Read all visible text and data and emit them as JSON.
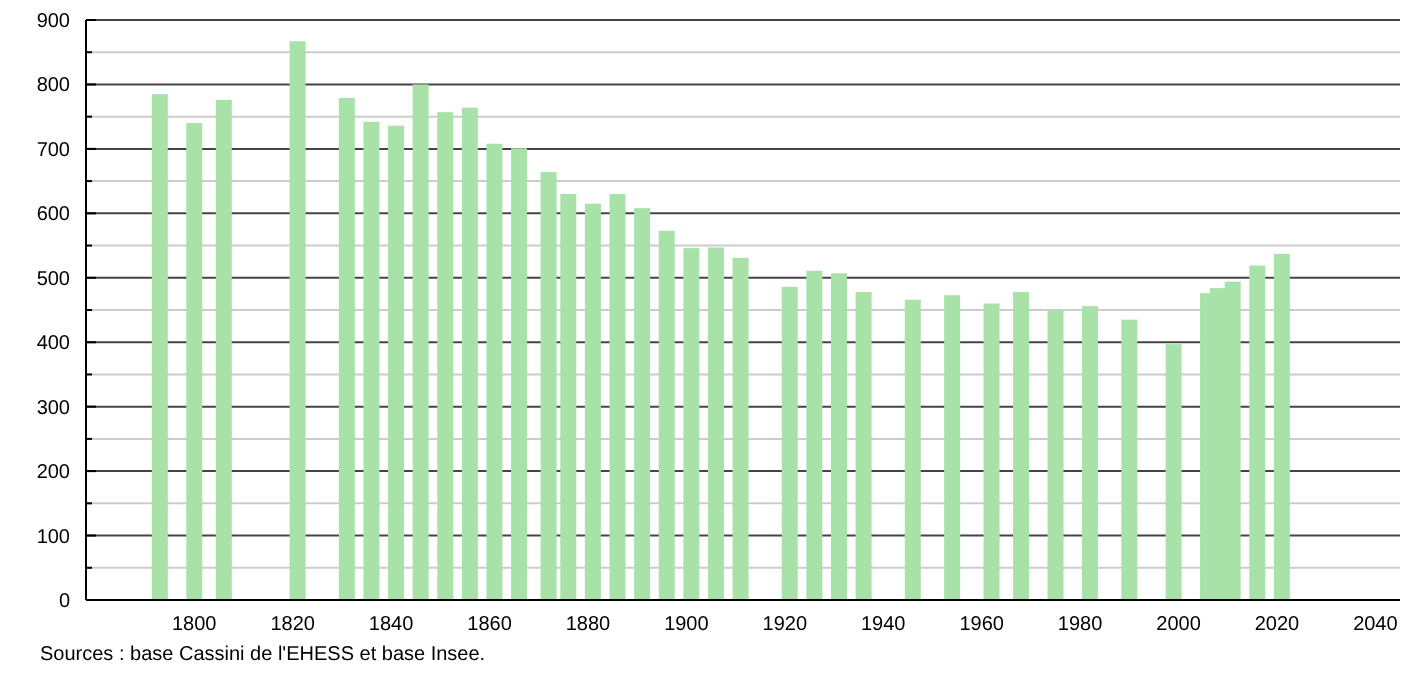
{
  "chart_data": {
    "type": "bar",
    "x": [
      1793,
      1800,
      1806,
      1821,
      1831,
      1836,
      1841,
      1846,
      1851,
      1856,
      1861,
      1866,
      1872,
      1876,
      1881,
      1886,
      1891,
      1896,
      1901,
      1906,
      1911,
      1921,
      1926,
      1931,
      1936,
      1946,
      1954,
      1962,
      1968,
      1975,
      1982,
      1990,
      1999,
      2006,
      2008,
      2011,
      2016,
      2021
    ],
    "values": [
      785,
      740,
      776,
      867,
      779,
      742,
      736,
      800,
      757,
      764,
      708,
      701,
      664,
      630,
      615,
      630,
      608,
      573,
      546,
      547,
      531,
      486,
      511,
      507,
      478,
      466,
      473,
      460,
      478,
      450,
      456,
      435,
      397,
      476,
      484,
      494,
      519,
      537
    ],
    "color": "#a8e2a8",
    "xlim": [
      1778,
      2045
    ],
    "xticks": [
      1800,
      1820,
      1840,
      1860,
      1880,
      1900,
      1920,
      1940,
      1960,
      1980,
      2000,
      2020,
      2040
    ],
    "ylim": [
      0,
      900
    ],
    "yticks": [
      0,
      {
        "value": 50,
        "label": null
      },
      100,
      {
        "value": 150,
        "label": null
      },
      200,
      {
        "value": 250,
        "label": null
      },
      300,
      {
        "value": 350,
        "label": null
      },
      400,
      {
        "value": 450,
        "label": null
      },
      500,
      {
        "value": 550,
        "label": null
      },
      600,
      {
        "value": 650,
        "label": null
      },
      700,
      {
        "value": 750,
        "label": null
      },
      800,
      {
        "value": 850,
        "label": null
      },
      900
    ],
    "grid": "y",
    "annotations": [
      "Sources : base Cassini de l'EHESS et base Insee."
    ]
  }
}
